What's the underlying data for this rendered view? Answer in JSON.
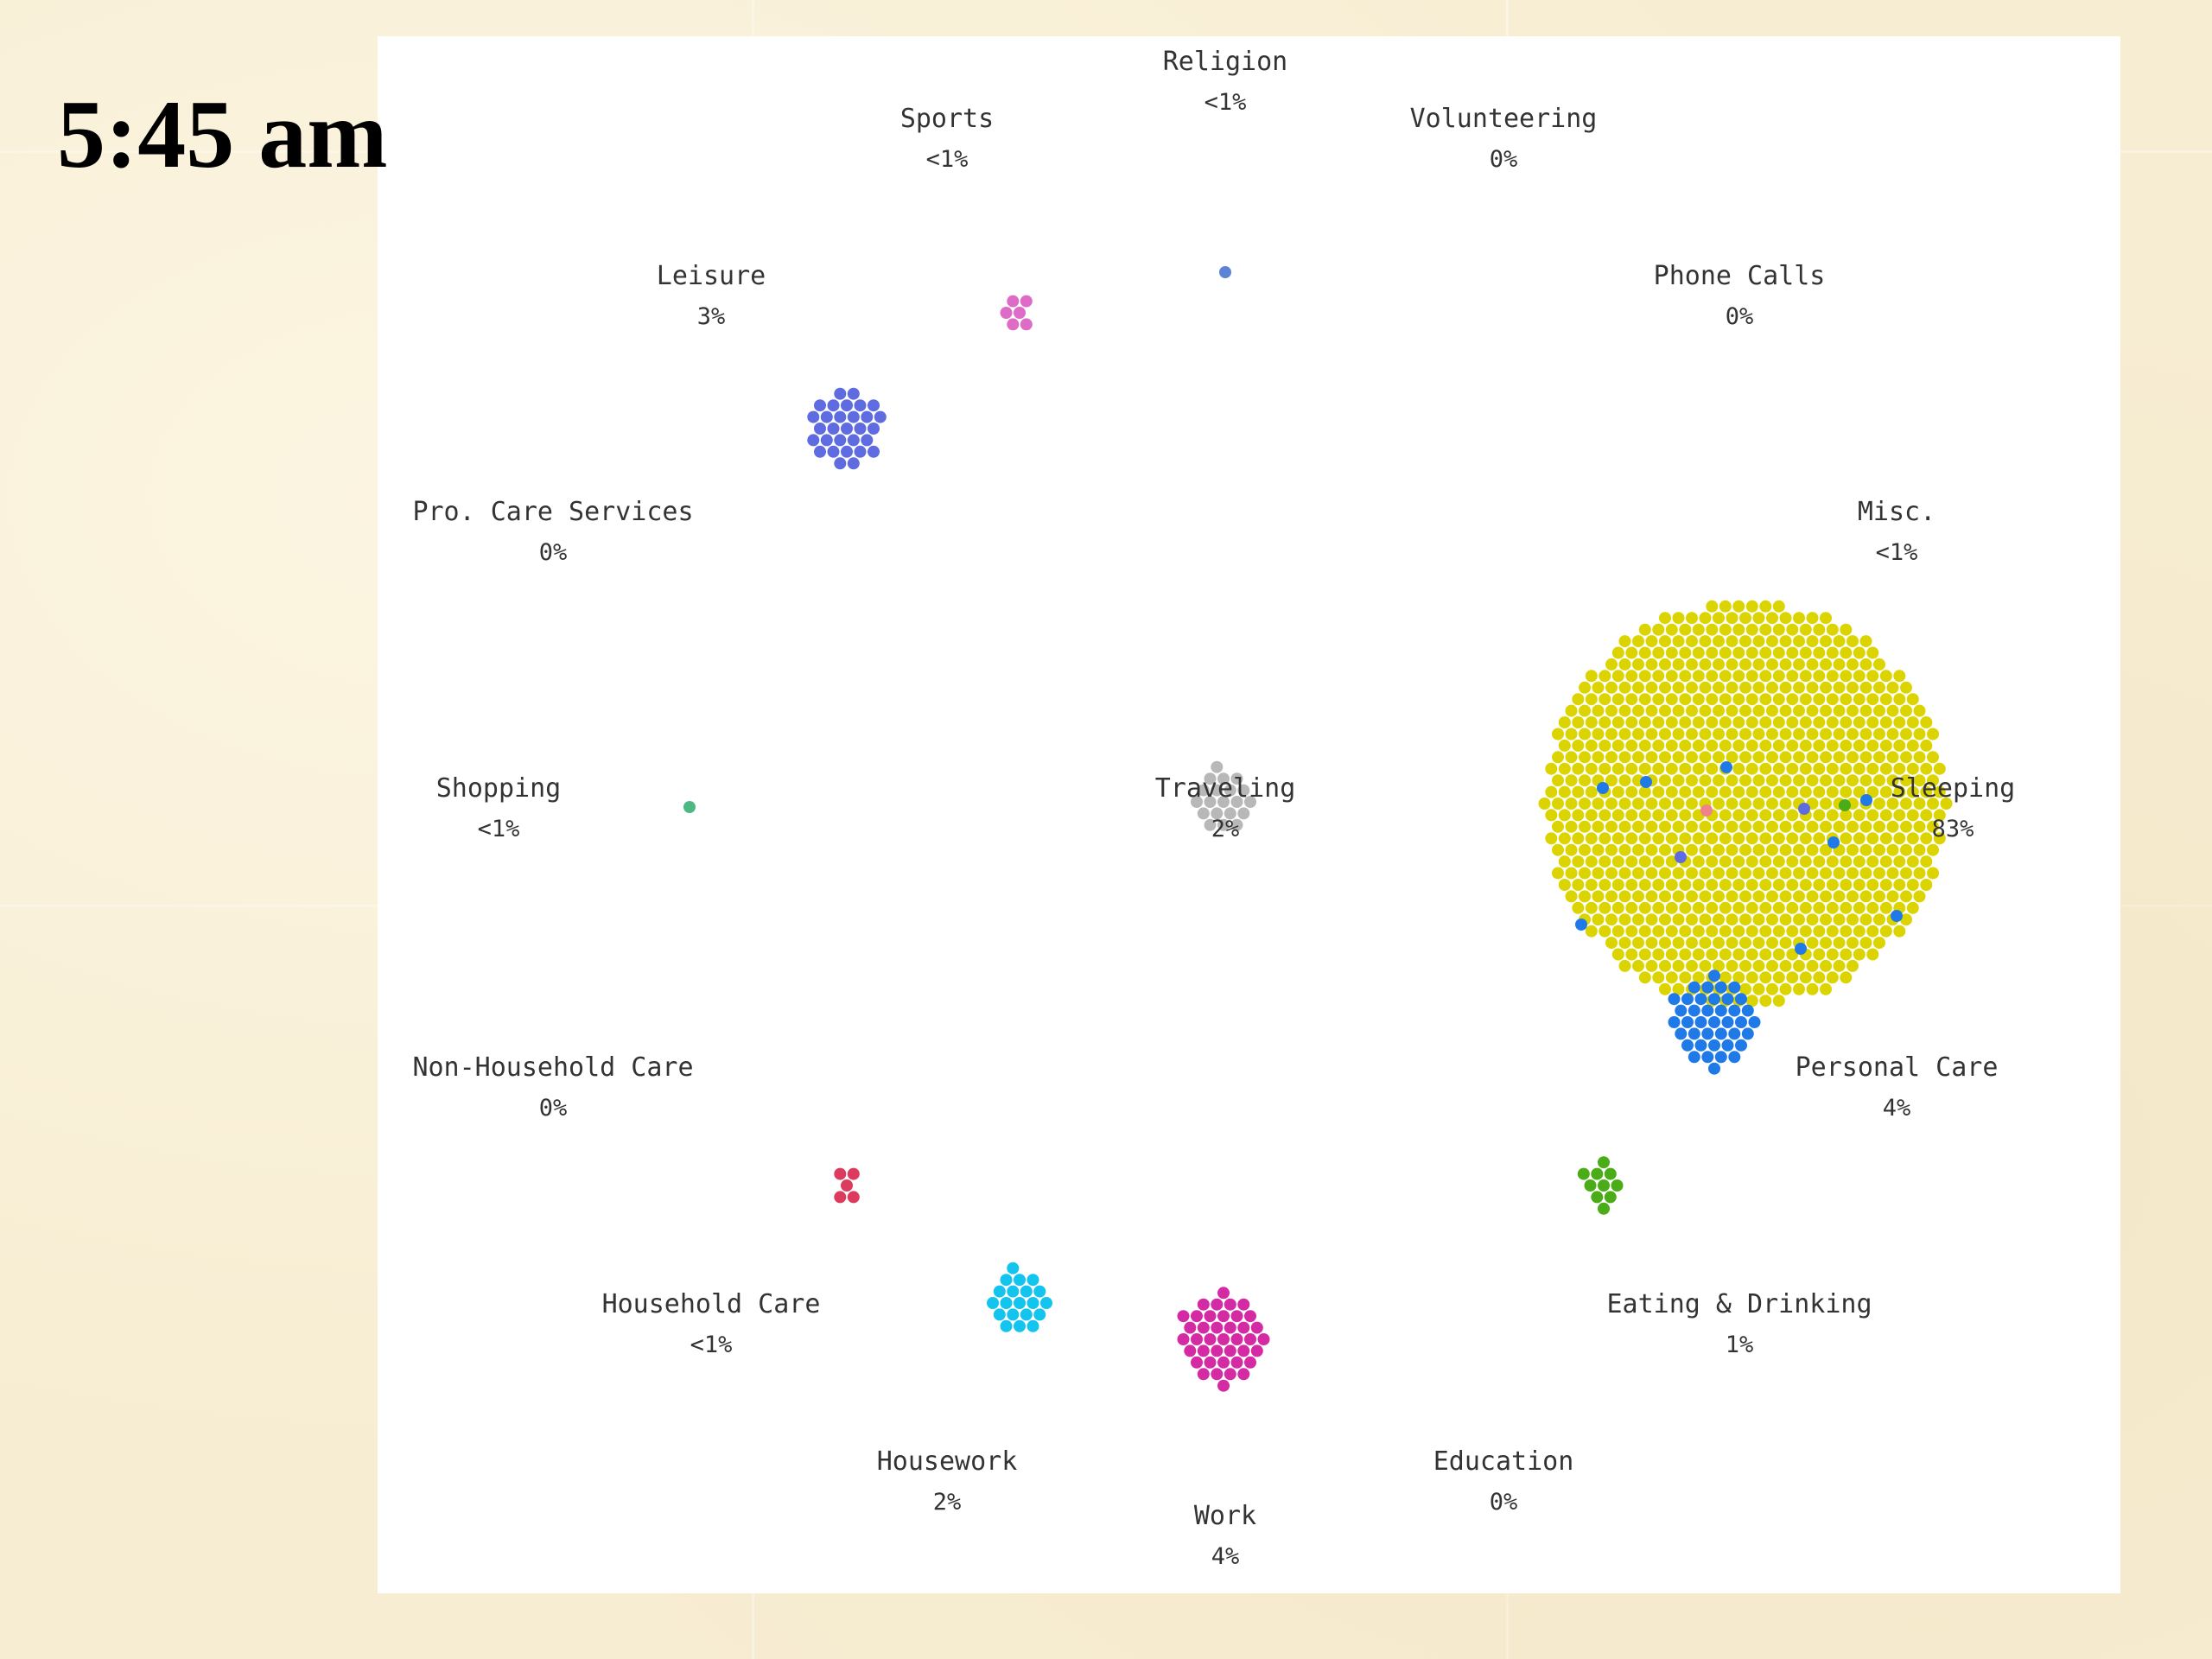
{
  "clock": "5:45 am",
  "colors": {
    "panel": "#ffffff",
    "label_text": "#333333"
  },
  "chart_data": {
    "type": "scatter",
    "title": "",
    "subtitle": "",
    "time": "5:45 am",
    "total_dots": 1000,
    "categories": [
      {
        "name": "Religion",
        "pct_label": "<1%",
        "pct": 0.1,
        "color": "#5c84d6"
      },
      {
        "name": "Volunteering",
        "pct_label": "0%",
        "pct": 0,
        "color": "#7a7a7a"
      },
      {
        "name": "Phone Calls",
        "pct_label": "0%",
        "pct": 0,
        "color": "#7a7a7a"
      },
      {
        "name": "Misc.",
        "pct_label": "<1%",
        "pct": 0,
        "color": "#999999"
      },
      {
        "name": "Sleeping",
        "pct_label": "83%",
        "pct": 83,
        "color": "#dcd400"
      },
      {
        "name": "Personal Care",
        "pct_label": "4%",
        "pct": 4,
        "color": "#1f7ae8"
      },
      {
        "name": "Eating & Drinking",
        "pct_label": "1%",
        "pct": 1,
        "color": "#4aac16"
      },
      {
        "name": "Education",
        "pct_label": "0%",
        "pct": 0,
        "color": "#7a7a7a"
      },
      {
        "name": "Work",
        "pct_label": "4%",
        "pct": 4,
        "color": "#d42aa4"
      },
      {
        "name": "Housework",
        "pct_label": "2%",
        "pct": 2,
        "color": "#12c4ee"
      },
      {
        "name": "Household Care",
        "pct_label": "<1%",
        "pct": 0.5,
        "color": "#dd3b5e"
      },
      {
        "name": "Non-Household Care",
        "pct_label": "0%",
        "pct": 0,
        "color": "#7a7a7a"
      },
      {
        "name": "Shopping",
        "pct_label": "<1%",
        "pct": 0.1,
        "color": "#4cb884"
      },
      {
        "name": "Pro. Care Services",
        "pct_label": "0%",
        "pct": 0,
        "color": "#7a7a7a"
      },
      {
        "name": "Leisure",
        "pct_label": "3%",
        "pct": 3,
        "color": "#5f6be0"
      },
      {
        "name": "Sports",
        "pct_label": "<1%",
        "pct": 0.6,
        "color": "#de6cc7"
      },
      {
        "name": "Traveling",
        "pct_label": "2%",
        "pct": 2,
        "color": "#b8b8b8"
      }
    ]
  }
}
